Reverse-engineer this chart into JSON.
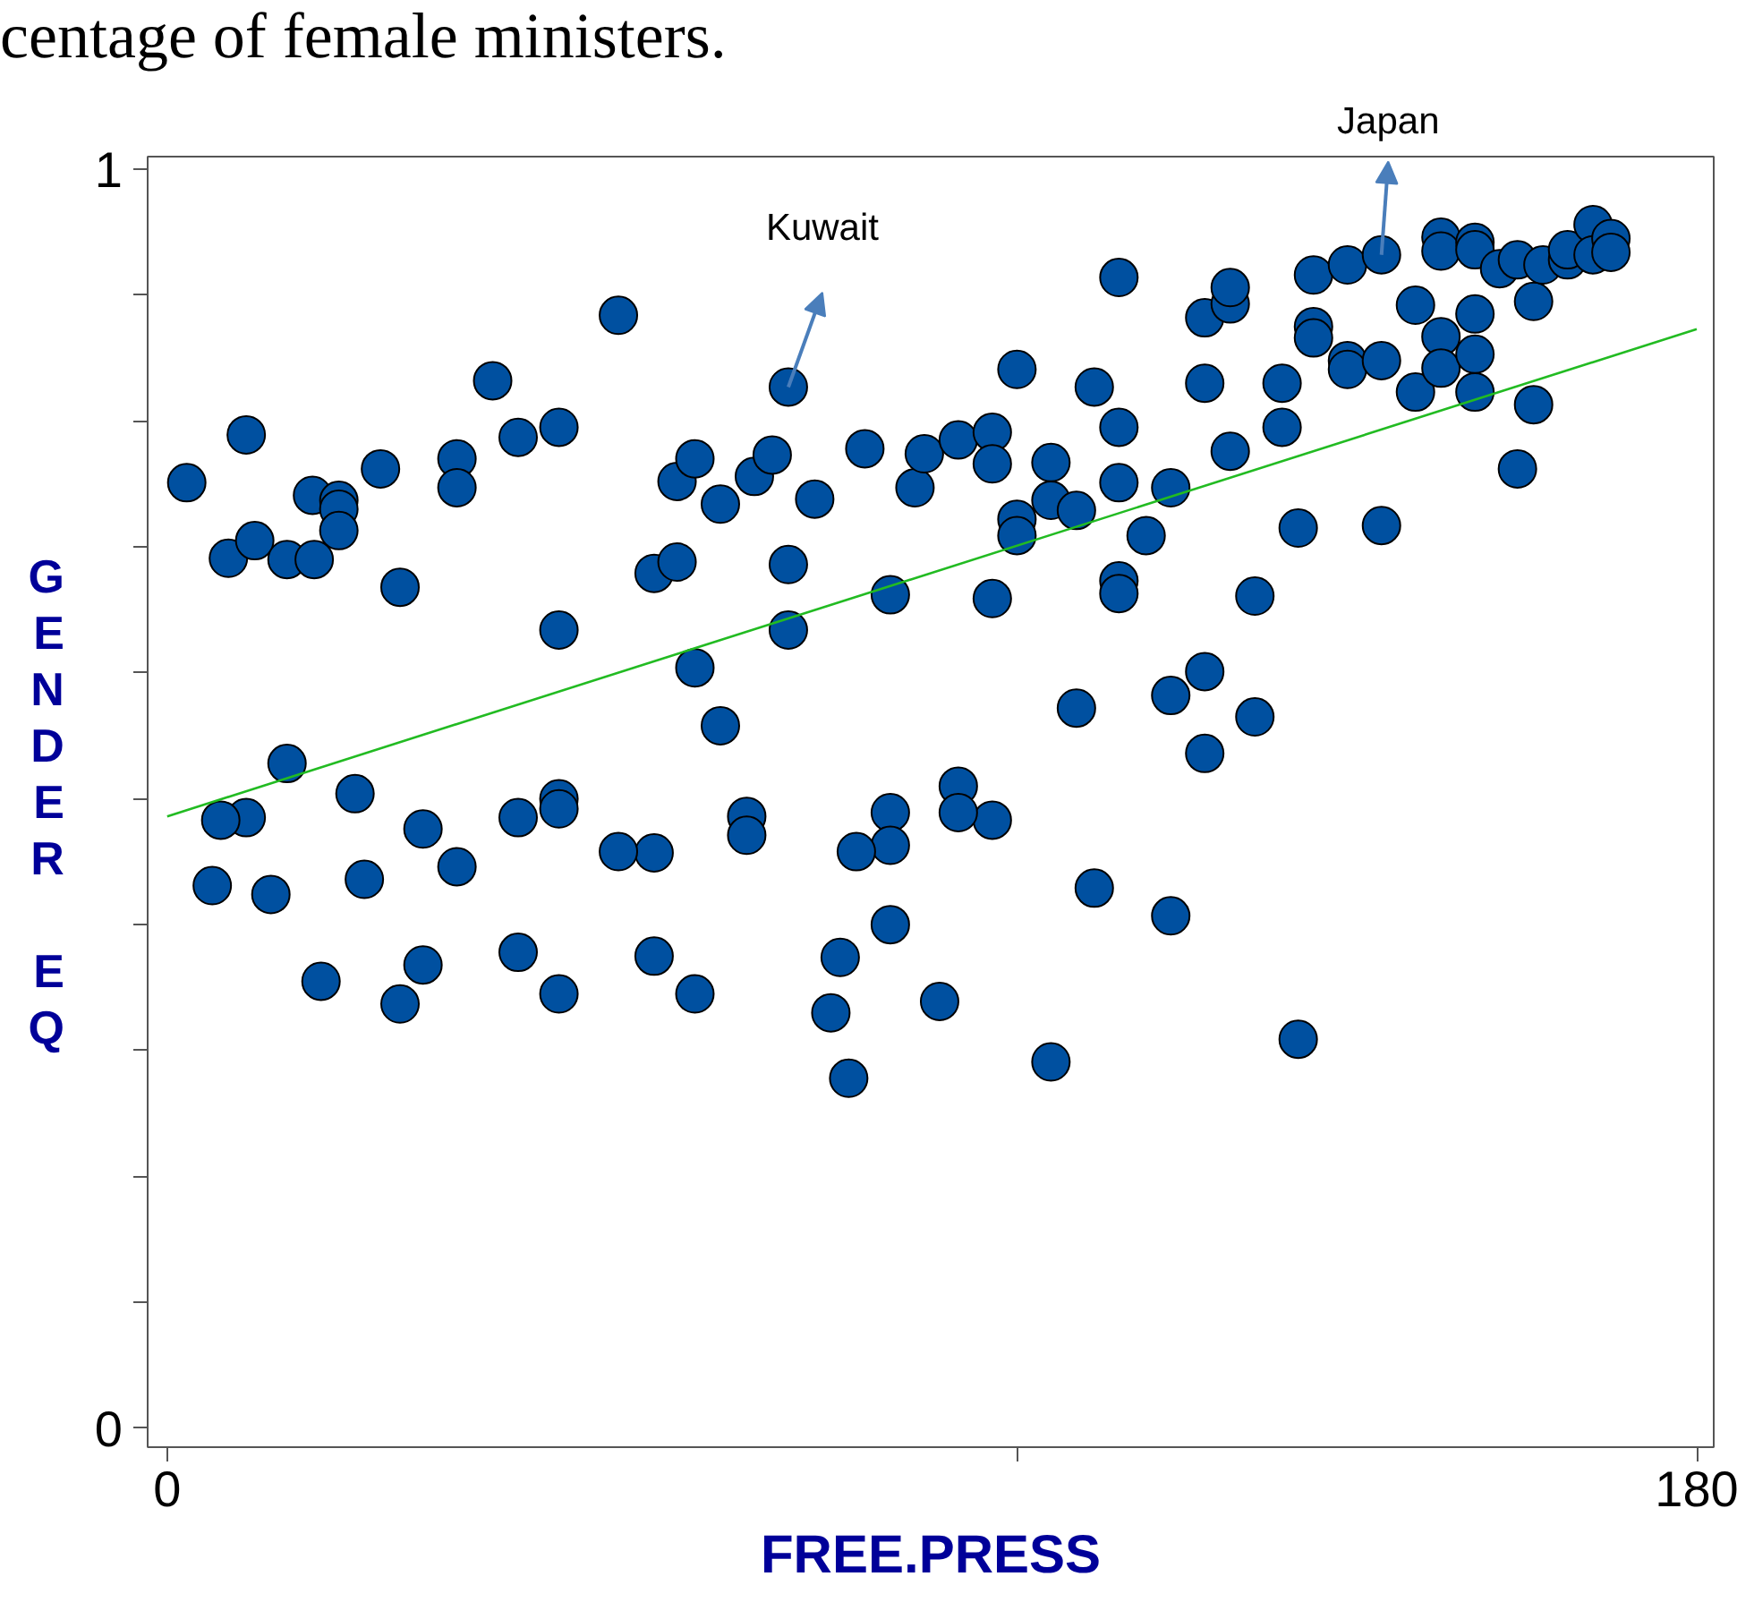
{
  "chart_data": {
    "type": "scatter",
    "xlabel": "FREE.PRESS",
    "ylabel": "GENDER EQ",
    "xlim": [
      -2.3,
      182
    ],
    "ylim": [
      -0.015,
      1.01
    ],
    "xticks": [
      0,
      {
        "value": 100,
        "label": null
      },
      180
    ],
    "yticks": [
      0,
      {
        "value": 0.1,
        "label": null
      },
      {
        "value": 0.2,
        "label": null
      },
      {
        "value": 0.3,
        "label": null
      },
      {
        "value": 0.4,
        "label": null
      },
      {
        "value": 0.5,
        "label": null
      },
      {
        "value": 0.6,
        "label": null
      },
      {
        "value": 0.7,
        "label": null
      },
      {
        "value": 0.8,
        "label": null
      },
      {
        "value": 0.9,
        "label": null
      },
      1
    ],
    "grid": false,
    "marker": "circle",
    "annotations": [
      "centage of female ministers.",
      {
        "text": "Kuwait",
        "x": 73.1,
        "y": 0.827
      },
      {
        "text": "Japan",
        "x": 142.9,
        "y": 0.932
      }
    ],
    "series": [
      {
        "color": "#0050a0",
        "x": [
          2.3,
          9.3,
          7.2,
          10.3,
          14.1,
          17.3,
          17.1,
          20.2,
          20.2,
          20.2,
          25.1,
          27.4,
          34.1,
          34.1,
          38.3,
          41.3,
          46.1,
          46.1,
          53.1,
          57.3,
          60.0,
          60.0,
          62.1,
          65.1,
          62.1,
          65.1,
          69.1,
          71.2,
          73.1,
          73.1,
          73.1,
          76.2,
          82.1,
          85.1,
          88.0,
          89.1,
          93.1,
          97.1,
          97.1,
          97.1,
          100.0,
          100.0,
          100.0,
          104.0,
          104.0,
          107.0,
          109.1,
          112.0,
          112.0,
          112.0,
          112.0,
          112.0,
          115.2,
          118.1,
          122.1,
          122.1,
          125.1,
          125.1,
          125.1,
          131.2,
          131.2,
          134.9,
          134.9,
          134.9,
          138.9,
          138.9,
          138.9,
          142.9,
          142.9,
          146.9,
          146.9,
          149.9,
          149.9,
          149.9,
          149.9,
          153.9,
          153.9,
          153.9,
          153.9,
          153.9,
          156.8,
          158.9,
          160.8,
          161.9,
          164.8,
          164.8,
          167.8,
          167.8,
          169.9,
          169.9,
          160.8,
          158.9,
          142.9,
          133.1,
          128.0,
          118.1,
          122.1,
          128.0,
          122.1,
          107.0,
          109.1,
          118.1,
          104.0,
          133.1,
          97.1,
          93.1,
          93.1,
          85.1,
          85.1,
          81.1,
          85.1,
          79.2,
          90.9,
          78.1,
          80.2,
          68.2,
          68.2,
          57.3,
          53.1,
          57.3,
          62.1,
          46.1,
          46.1,
          41.3,
          41.3,
          46.1,
          34.1,
          30.1,
          30.1,
          27.4,
          22.1,
          23.2,
          14.1,
          9.3,
          6.3,
          5.3,
          12.2,
          18.1
        ],
        "values": [
          0.751,
          0.789,
          0.691,
          0.705,
          0.69,
          0.69,
          0.741,
          0.737,
          0.73,
          0.713,
          0.762,
          0.668,
          0.77,
          0.747,
          0.832,
          0.787,
          0.795,
          0.634,
          0.884,
          0.679,
          0.688,
          0.752,
          0.77,
          0.734,
          0.604,
          0.558,
          0.756,
          0.773,
          0.827,
          0.686,
          0.634,
          0.738,
          0.778,
          0.662,
          0.747,
          0.774,
          0.785,
          0.791,
          0.766,
          0.659,
          0.841,
          0.722,
          0.709,
          0.767,
          0.737,
          0.729,
          0.827,
          0.914,
          0.795,
          0.751,
          0.673,
          0.663,
          0.709,
          0.747,
          0.882,
          0.83,
          0.893,
          0.906,
          0.776,
          0.83,
          0.795,
          0.916,
          0.875,
          0.866,
          0.924,
          0.848,
          0.841,
          0.932,
          0.848,
          0.892,
          0.823,
          0.946,
          0.935,
          0.867,
          0.842,
          0.942,
          0.936,
          0.885,
          0.853,
          0.823,
          0.921,
          0.928,
          0.895,
          0.924,
          0.928,
          0.936,
          0.956,
          0.932,
          0.945,
          0.934,
          0.813,
          0.762,
          0.717,
          0.715,
          0.661,
          0.582,
          0.601,
          0.565,
          0.536,
          0.572,
          0.429,
          0.407,
          0.291,
          0.309,
          0.483,
          0.51,
          0.489,
          0.489,
          0.463,
          0.458,
          0.4,
          0.374,
          0.339,
          0.33,
          0.278,
          0.486,
          0.471,
          0.457,
          0.458,
          0.375,
          0.345,
          0.5,
          0.492,
          0.485,
          0.378,
          0.345,
          0.446,
          0.476,
          0.368,
          0.337,
          0.504,
          0.436,
          0.528,
          0.485,
          0.483,
          0.431,
          0.424,
          0.355
        ]
      },
      {
        "type": "line",
        "marker": "none",
        "color": "#22bb22",
        "x": [
          0,
          180
        ],
        "values": [
          0.486,
          0.873
        ]
      }
    ]
  }
}
